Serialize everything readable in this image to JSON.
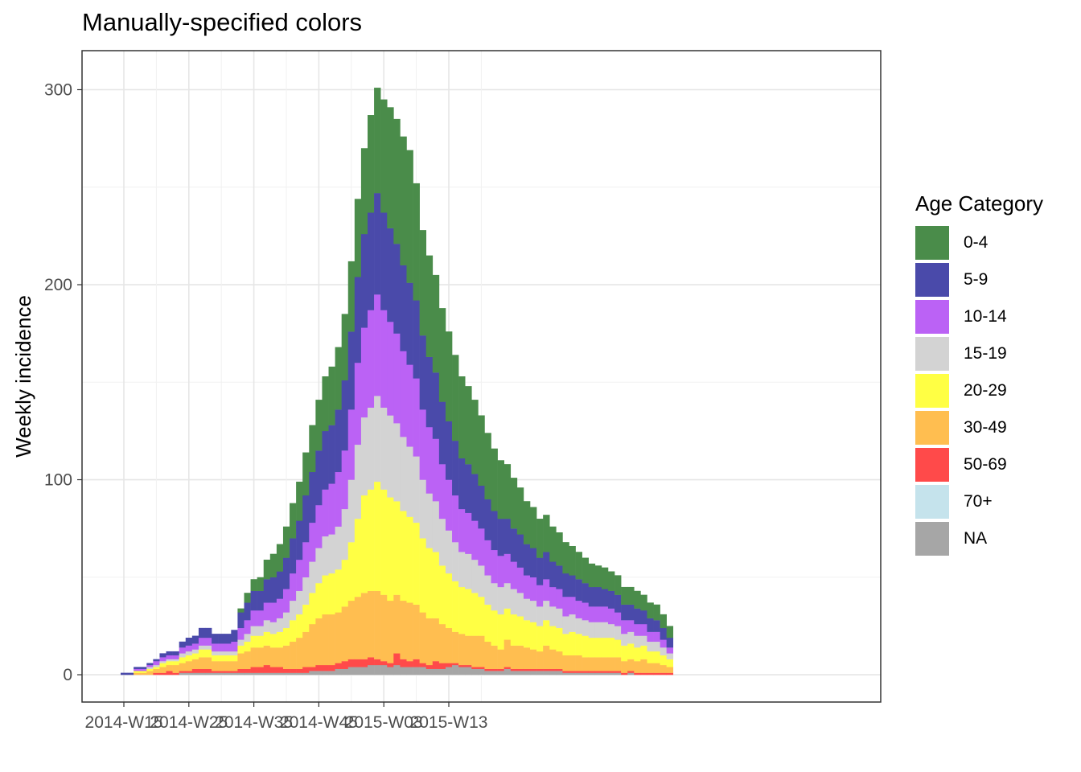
{
  "chart_data": {
    "type": "bar",
    "stacked": true,
    "title": "Manually-specified colors",
    "xlabel": "",
    "ylabel": "Weekly incidence",
    "ylim": [
      -14,
      320
    ],
    "yticks": [
      0,
      100,
      200,
      300
    ],
    "xticks": [
      "2014-W15",
      "2014-W25",
      "2014-W35",
      "2014-W45",
      "2015-W03",
      "2015-W13"
    ],
    "x_first": "2014-W15",
    "x_step": "1 week",
    "legend_title": "Age Category",
    "legend_position": "right",
    "grid": true,
    "series": [
      {
        "name": "NA",
        "color": "#a6a6a6",
        "values": [
          0,
          0,
          0,
          0,
          0,
          0,
          0,
          0,
          0,
          1,
          1,
          1,
          1,
          1,
          1,
          1,
          1,
          1,
          1,
          1,
          1,
          1,
          1,
          1,
          1,
          1,
          1,
          1,
          1,
          2,
          2,
          2,
          2,
          3,
          3,
          4,
          4,
          4,
          5,
          5,
          5,
          4,
          5,
          4,
          4,
          4,
          4,
          3,
          3,
          3,
          4,
          5,
          4,
          4,
          3,
          3,
          2,
          2,
          2,
          3,
          2,
          2,
          2,
          2,
          2,
          2,
          2,
          2,
          1,
          1,
          1,
          1,
          1,
          1,
          1,
          1,
          1,
          0,
          1,
          0,
          0,
          0,
          0,
          0,
          0
        ]
      },
      {
        "name": "70+",
        "color": "#c5e3ec",
        "values": [
          0,
          0,
          0,
          0,
          0,
          0,
          0,
          0,
          0,
          0,
          0,
          0,
          0,
          0,
          0,
          0,
          0,
          0,
          0,
          0,
          0,
          0,
          0,
          0,
          0,
          0,
          0,
          0,
          0,
          0,
          0,
          0,
          0,
          0,
          0,
          0,
          0,
          0,
          0,
          0,
          0,
          0,
          0,
          0,
          0,
          0,
          0,
          0,
          0,
          0,
          0,
          0,
          0,
          0,
          0,
          0,
          0,
          0,
          0,
          0,
          0,
          0,
          0,
          0,
          0,
          0,
          0,
          0,
          0,
          0,
          0,
          0,
          0,
          0,
          0,
          0,
          0,
          0,
          0,
          0,
          0,
          0,
          0,
          0,
          0
        ]
      },
      {
        "name": "50-69",
        "color": "#ff4a4a",
        "values": [
          0,
          0,
          0,
          0,
          0,
          1,
          1,
          2,
          1,
          1,
          1,
          2,
          2,
          2,
          1,
          1,
          1,
          1,
          2,
          2,
          3,
          3,
          4,
          3,
          3,
          2,
          2,
          2,
          3,
          2,
          3,
          3,
          3,
          3,
          4,
          4,
          4,
          4,
          4,
          3,
          2,
          2,
          6,
          4,
          3,
          4,
          2,
          2,
          4,
          3,
          2,
          1,
          1,
          1,
          1,
          1,
          1,
          1,
          1,
          1,
          1,
          1,
          1,
          1,
          1,
          1,
          1,
          1,
          1,
          1,
          1,
          1,
          1,
          1,
          1,
          1,
          1,
          1,
          1,
          1,
          1,
          1,
          1,
          1,
          1
        ]
      },
      {
        "name": "30-49",
        "color": "#ffbe50",
        "values": [
          0,
          0,
          1,
          1,
          2,
          2,
          3,
          3,
          4,
          4,
          5,
          5,
          6,
          6,
          5,
          5,
          5,
          5,
          8,
          9,
          10,
          10,
          10,
          10,
          10,
          12,
          14,
          16,
          18,
          22,
          24,
          26,
          26,
          26,
          28,
          30,
          32,
          34,
          34,
          35,
          34,
          32,
          30,
          30,
          30,
          28,
          26,
          24,
          22,
          20,
          18,
          16,
          16,
          15,
          16,
          16,
          14,
          12,
          10,
          14,
          12,
          12,
          11,
          10,
          9,
          12,
          10,
          9,
          8,
          8,
          8,
          7,
          7,
          7,
          7,
          7,
          7,
          6,
          6,
          6,
          7,
          5,
          5,
          4,
          3
        ]
      },
      {
        "name": "20-29",
        "color": "#ffff44",
        "values": [
          0,
          0,
          1,
          1,
          1,
          1,
          2,
          2,
          2,
          3,
          3,
          3,
          4,
          4,
          3,
          3,
          3,
          3,
          4,
          5,
          6,
          6,
          7,
          7,
          8,
          9,
          11,
          12,
          14,
          16,
          18,
          20,
          21,
          22,
          24,
          30,
          40,
          50,
          52,
          56,
          54,
          53,
          48,
          46,
          44,
          42,
          38,
          36,
          34,
          30,
          28,
          26,
          24,
          24,
          22,
          20,
          19,
          18,
          18,
          16,
          16,
          15,
          14,
          14,
          13,
          13,
          12,
          12,
          11,
          12,
          11,
          11,
          10,
          10,
          10,
          10,
          9,
          8,
          8,
          7,
          7,
          6,
          6,
          5,
          4
        ]
      },
      {
        "name": "15-19",
        "color": "#d3d3d3",
        "values": [
          0,
          0,
          0,
          0,
          1,
          1,
          1,
          1,
          1,
          2,
          2,
          2,
          2,
          2,
          2,
          2,
          2,
          2,
          3,
          4,
          5,
          5,
          6,
          6,
          7,
          8,
          10,
          12,
          14,
          16,
          18,
          20,
          20,
          22,
          26,
          32,
          38,
          40,
          42,
          44,
          42,
          42,
          40,
          38,
          36,
          34,
          30,
          28,
          26,
          24,
          22,
          20,
          18,
          18,
          17,
          16,
          15,
          14,
          14,
          13,
          13,
          12,
          11,
          11,
          10,
          10,
          10,
          10,
          9,
          9,
          8,
          8,
          8,
          8,
          8,
          7,
          7,
          6,
          6,
          6,
          5,
          5,
          5,
          4,
          3
        ]
      },
      {
        "name": "10-14",
        "color": "#bb62f5",
        "values": [
          0,
          0,
          1,
          1,
          1,
          2,
          2,
          2,
          2,
          3,
          3,
          3,
          4,
          4,
          4,
          4,
          4,
          5,
          6,
          7,
          8,
          8,
          9,
          10,
          10,
          12,
          14,
          16,
          18,
          20,
          22,
          24,
          26,
          28,
          30,
          36,
          42,
          46,
          50,
          52,
          50,
          48,
          46,
          44,
          42,
          40,
          36,
          34,
          32,
          28,
          26,
          24,
          22,
          21,
          20,
          19,
          18,
          17,
          16,
          15,
          14,
          13,
          12,
          12,
          11,
          11,
          10,
          10,
          10,
          9,
          9,
          9,
          8,
          8,
          8,
          8,
          7,
          7,
          6,
          6,
          6,
          5,
          5,
          4,
          3
        ]
      },
      {
        "name": "5-9",
        "color": "#4a4aaa",
        "values": [
          1,
          1,
          1,
          1,
          1,
          1,
          2,
          2,
          2,
          3,
          4,
          4,
          5,
          5,
          5,
          5,
          5,
          6,
          8,
          9,
          10,
          10,
          12,
          13,
          14,
          16,
          18,
          20,
          24,
          26,
          28,
          30,
          30,
          32,
          36,
          40,
          44,
          48,
          50,
          52,
          50,
          48,
          46,
          44,
          42,
          40,
          38,
          36,
          34,
          32,
          30,
          28,
          26,
          25,
          24,
          22,
          21,
          20,
          19,
          18,
          17,
          17,
          16,
          15,
          14,
          14,
          13,
          12,
          12,
          11,
          11,
          10,
          10,
          10,
          9,
          9,
          9,
          8,
          8,
          8,
          7,
          7,
          6,
          6,
          5
        ]
      },
      {
        "name": "0-4",
        "color": "#4a8c4a",
        "values": [
          0,
          0,
          0,
          0,
          0,
          0,
          0,
          0,
          0,
          0,
          0,
          0,
          0,
          0,
          0,
          0,
          0,
          0,
          2,
          5,
          6,
          7,
          10,
          12,
          14,
          16,
          18,
          20,
          22,
          24,
          26,
          28,
          30,
          32,
          34,
          36,
          40,
          44,
          50,
          54,
          58,
          62,
          64,
          66,
          68,
          60,
          54,
          52,
          50,
          48,
          46,
          44,
          42,
          40,
          38,
          36,
          34,
          32,
          30,
          28,
          26,
          24,
          22,
          21,
          20,
          19,
          18,
          17,
          16,
          15,
          14,
          13,
          12,
          11,
          11,
          10,
          10,
          9,
          9,
          9,
          8,
          8,
          8,
          7,
          6
        ]
      }
    ]
  }
}
